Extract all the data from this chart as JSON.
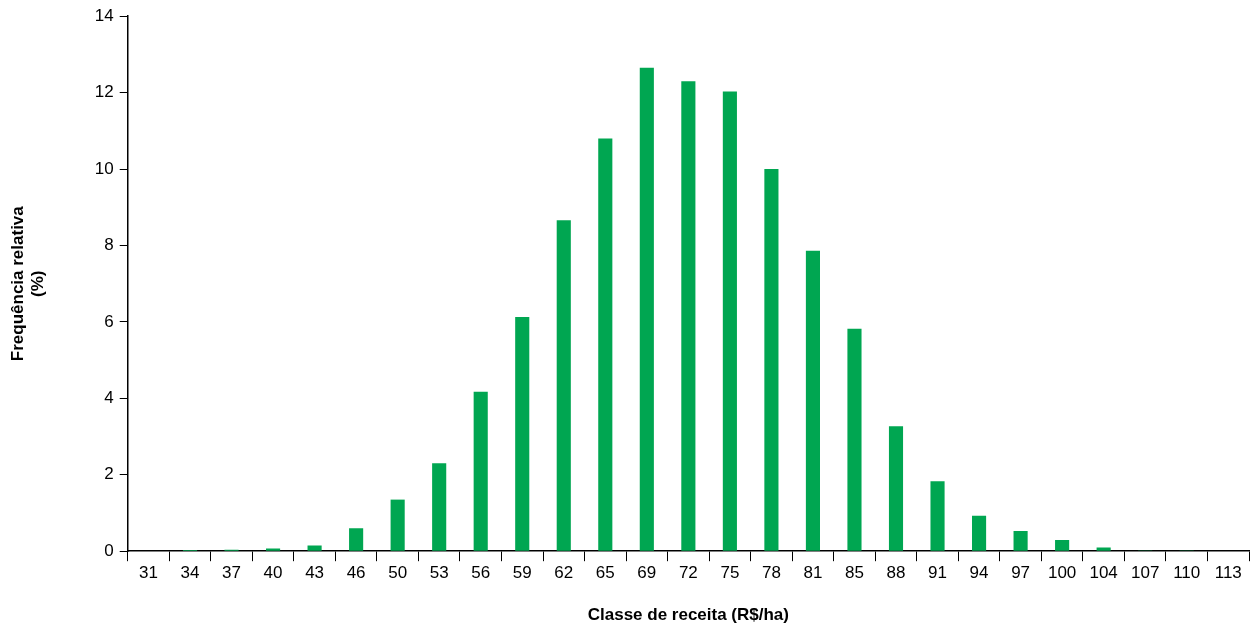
{
  "chart_data": {
    "type": "bar",
    "xlabel": "Classe de receita (R$/ha)",
    "ylabel": "Frequência relativa\n(%)",
    "categories": [
      "31",
      "34",
      "37",
      "40",
      "43",
      "46",
      "50",
      "53",
      "56",
      "59",
      "62",
      "65",
      "69",
      "72",
      "75",
      "78",
      "81",
      "85",
      "88",
      "91",
      "94",
      "97",
      "100",
      "104",
      "107",
      "110",
      "113"
    ],
    "values": [
      0.01,
      0.03,
      0.04,
      0.07,
      0.15,
      0.6,
      1.35,
      2.3,
      4.17,
      6.13,
      8.66,
      10.8,
      12.65,
      12.3,
      12.03,
      10.0,
      7.86,
      5.82,
      3.27,
      1.83,
      0.93,
      0.53,
      0.29,
      0.1,
      0.02,
      0.02,
      0.01
    ],
    "color": "#00a651",
    "ylim": [
      0,
      14
    ],
    "yticks": [
      0,
      2,
      4,
      6,
      8,
      10,
      12,
      14
    ],
    "grid": false,
    "legend": false
  }
}
